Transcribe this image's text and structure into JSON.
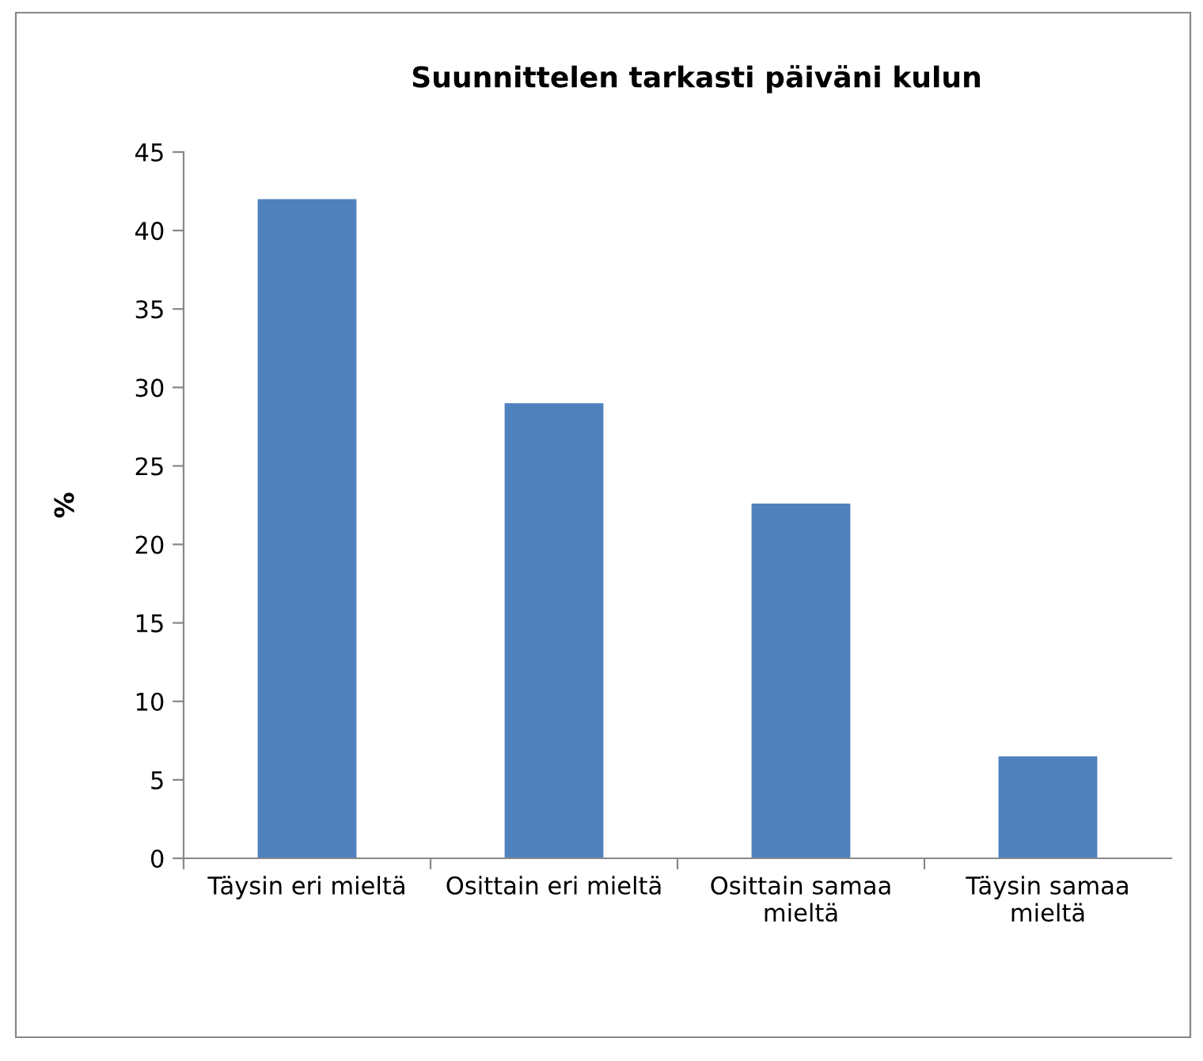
{
  "chart_data": {
    "type": "bar",
    "title": "Suunnittelen tarkasti päiväni kulun",
    "ylabel": "%",
    "categories": [
      "Täysin eri mieltä",
      "Osittain eri mieltä",
      "Osittain samaa\nmieltä",
      "Täysin samaa\nmieltä"
    ],
    "values": [
      42.0,
      29.0,
      22.6,
      6.5
    ],
    "color": "#4f81bd",
    "ylim": [
      0,
      45
    ],
    "yticks": [
      0,
      5,
      10,
      15,
      20,
      25,
      30,
      35,
      40,
      45
    ],
    "grid": false,
    "legend": false
  }
}
